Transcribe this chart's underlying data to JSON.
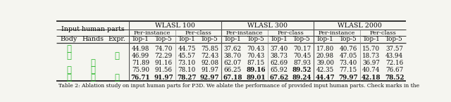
{
  "top_headers": [
    "WLASL 100",
    "WLASL 300",
    "WLASL 2000"
  ],
  "mid_headers": [
    "Per-instance",
    "Per-class",
    "Per-instance",
    "Per-class",
    "Per-instance",
    "Per-class"
  ],
  "left_col_headers": [
    "Body",
    "Hands",
    "Expr."
  ],
  "data_col_headers": [
    "Top-1",
    "Top-5",
    "Top-1",
    "Top-5",
    "Top-1",
    "Top-5",
    "Top-1",
    "Top-5",
    "Top-1",
    "Top-5",
    "Top-1",
    "Top-5"
  ],
  "rows": [
    {
      "body": true,
      "hands": false,
      "expr": false,
      "vals": [
        "44.98",
        "74.70",
        "44.75",
        "75.85",
        "37.62",
        "70.43",
        "37.40",
        "70.17",
        "17.80",
        "40.76",
        "15.70",
        "37.57"
      ],
      "bold_all": false,
      "bold_cols": []
    },
    {
      "body": true,
      "hands": false,
      "expr": true,
      "vals": [
        "46.99",
        "72.29",
        "45.57",
        "72.43",
        "38.70",
        "70.43",
        "38.73",
        "70.45",
        "20.98",
        "47.05",
        "18.73",
        "43.94"
      ],
      "bold_all": false,
      "bold_cols": []
    },
    {
      "body": false,
      "hands": true,
      "expr": false,
      "vals": [
        "71.89",
        "91.16",
        "73.10",
        "92.08",
        "62.07",
        "87.15",
        "62.69",
        "87.93",
        "39.00",
        "73.40",
        "36.97",
        "72.16"
      ],
      "bold_all": false,
      "bold_cols": []
    },
    {
      "body": true,
      "hands": true,
      "expr": false,
      "vals": [
        "75.90",
        "91.56",
        "78.10",
        "91.97",
        "66.25",
        "89.16",
        "65.92",
        "89.52",
        "42.35",
        "77.15",
        "40.74",
        "76.67"
      ],
      "bold_all": false,
      "bold_cols": [
        5,
        7
      ]
    },
    {
      "body": true,
      "hands": true,
      "expr": true,
      "vals": [
        "76.71",
        "91.97",
        "78.27",
        "92.97",
        "67.18",
        "89.01",
        "67.62",
        "89.24",
        "44.47",
        "79.97",
        "42.18",
        "78.52"
      ],
      "bold_all": true,
      "bold_cols": []
    }
  ],
  "caption": "Table 2: Ablation study on input human parts for P3D. We ablate the performance of provided input human parts. Check marks in the",
  "check_color": "#2db82d",
  "bg_color": "#f5f5f0",
  "font_size": 6.8,
  "caption_font_size": 5.5
}
